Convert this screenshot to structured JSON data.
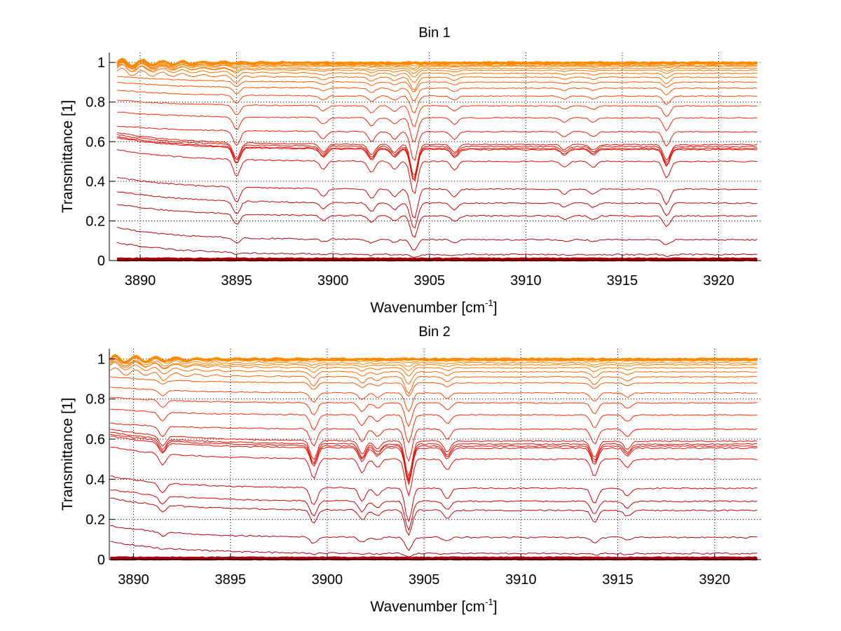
{
  "chart_data": [
    {
      "type": "line",
      "title": "Bin 1",
      "xlabel": "Wavenumber [cm",
      "xlabel_sup": "-1",
      "xlabel_end": "]",
      "ylabel": "Transmittance [1]",
      "xlim": [
        3888.4,
        3922.2
      ],
      "ylim": [
        0,
        1.05
      ],
      "xticks": [
        3890,
        3895,
        3900,
        3905,
        3910,
        3915,
        3920
      ],
      "xtick_labels": [
        "3890",
        "3895",
        "3900",
        "3905",
        "3910",
        "3915",
        "3920"
      ],
      "yticks": [
        0,
        0.2,
        0.4,
        0.6,
        0.8,
        1
      ],
      "ytick_labels": [
        "0",
        "0.2",
        "0.4",
        "0.6",
        "0.8",
        "1"
      ],
      "grid": "dotted",
      "x_start": 3888.8,
      "x_end": 3922.0,
      "series_levels": [
        1.0,
        0.998,
        0.995,
        0.99,
        0.985,
        0.98,
        0.97,
        0.96,
        0.945,
        0.925,
        0.9,
        0.87,
        0.83,
        0.78,
        0.72,
        0.65,
        0.585,
        0.575,
        0.565,
        0.56,
        0.5,
        0.36,
        0.29,
        0.225,
        0.105,
        0.03,
        0.01,
        0.005,
        0.0
      ],
      "dips": [
        {
          "x": 3895.0,
          "depth": 0.06
        },
        {
          "x": 3899.5,
          "depth": 0.03
        },
        {
          "x": 3902.0,
          "depth": 0.04
        },
        {
          "x": 3903.2,
          "depth": 0.03
        },
        {
          "x": 3904.2,
          "depth": 0.12
        },
        {
          "x": 3906.3,
          "depth": 0.03
        },
        {
          "x": 3912.0,
          "depth": 0.02
        },
        {
          "x": 3913.5,
          "depth": 0.02
        },
        {
          "x": 3917.3,
          "depth": 0.06
        }
      ]
    },
    {
      "type": "line",
      "title": "Bin 2",
      "xlabel": "Wavenumber [cm",
      "xlabel_sup": "-1",
      "xlabel_end": "]",
      "ylabel": "Transmittance [1]",
      "xlim": [
        3888.75,
        3922.4
      ],
      "ylim": [
        0,
        1.05
      ],
      "xticks": [
        3890,
        3895,
        3900,
        3905,
        3910,
        3915,
        3920
      ],
      "xtick_labels": [
        "3890",
        "3895",
        "3900",
        "3905",
        "3910",
        "3915",
        "3920"
      ],
      "yticks": [
        0,
        0.2,
        0.4,
        0.6,
        0.8,
        1
      ],
      "ytick_labels": [
        "0",
        "0.2",
        "0.4",
        "0.6",
        "0.8",
        "1"
      ],
      "grid": "dotted",
      "x_start": 3888.8,
      "x_end": 3922.2,
      "series_levels": [
        1.0,
        0.998,
        0.995,
        0.99,
        0.98,
        0.97,
        0.955,
        0.935,
        0.91,
        0.88,
        0.83,
        0.78,
        0.72,
        0.65,
        0.59,
        0.575,
        0.565,
        0.555,
        0.5,
        0.355,
        0.29,
        0.245,
        0.11,
        0.03,
        0.01,
        0.005,
        0.0
      ],
      "dips": [
        {
          "x": 3891.5,
          "depth": 0.04
        },
        {
          "x": 3899.3,
          "depth": 0.07
        },
        {
          "x": 3901.8,
          "depth": 0.05
        },
        {
          "x": 3902.6,
          "depth": 0.03
        },
        {
          "x": 3904.2,
          "depth": 0.13
        },
        {
          "x": 3906.2,
          "depth": 0.04
        },
        {
          "x": 3913.8,
          "depth": 0.06
        },
        {
          "x": 3915.5,
          "depth": 0.03
        }
      ]
    }
  ]
}
